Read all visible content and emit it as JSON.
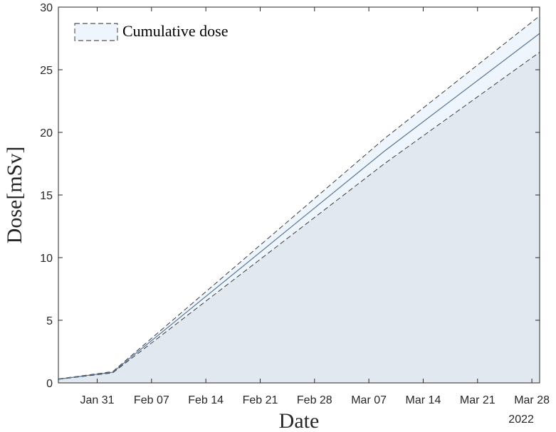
{
  "chart_data": {
    "type": "area",
    "xlabel": "Date",
    "ylabel": "Dose[mSv]",
    "year_label": "2022",
    "x_ticks": [
      "Jan 31",
      "Feb 07",
      "Feb 14",
      "Feb 21",
      "Feb 28",
      "Mar 07",
      "Mar 14",
      "Mar 21",
      "Mar 28"
    ],
    "x_tick_dates": [
      "2022-01-31",
      "2022-02-07",
      "2022-02-14",
      "2022-02-21",
      "2022-02-28",
      "2022-03-07",
      "2022-03-14",
      "2022-03-21",
      "2022-03-28"
    ],
    "xlim": [
      "2022-01-26",
      "2022-03-29"
    ],
    "ylim": [
      0,
      30
    ],
    "y_ticks": [
      0,
      5,
      10,
      15,
      20,
      25,
      30
    ],
    "legend": {
      "label": "Cumulative dose",
      "position": "top-left"
    },
    "series": [
      {
        "name": "Cumulative dose",
        "x": [
          "2022-01-26",
          "2022-02-02",
          "2022-03-09",
          "2022-03-29"
        ],
        "y": [
          0.3,
          0.85,
          18.5,
          27.9
        ],
        "lower": [
          0.28,
          0.8,
          17.5,
          26.4
        ],
        "upper": [
          0.32,
          0.9,
          19.5,
          29.3
        ]
      }
    ],
    "colors": {
      "fill_below": "#e1e8f0",
      "band_fill": "#eef5fc",
      "line": "#5a7594",
      "bound_line": "#2a2a2a",
      "axis": "#262626"
    }
  }
}
